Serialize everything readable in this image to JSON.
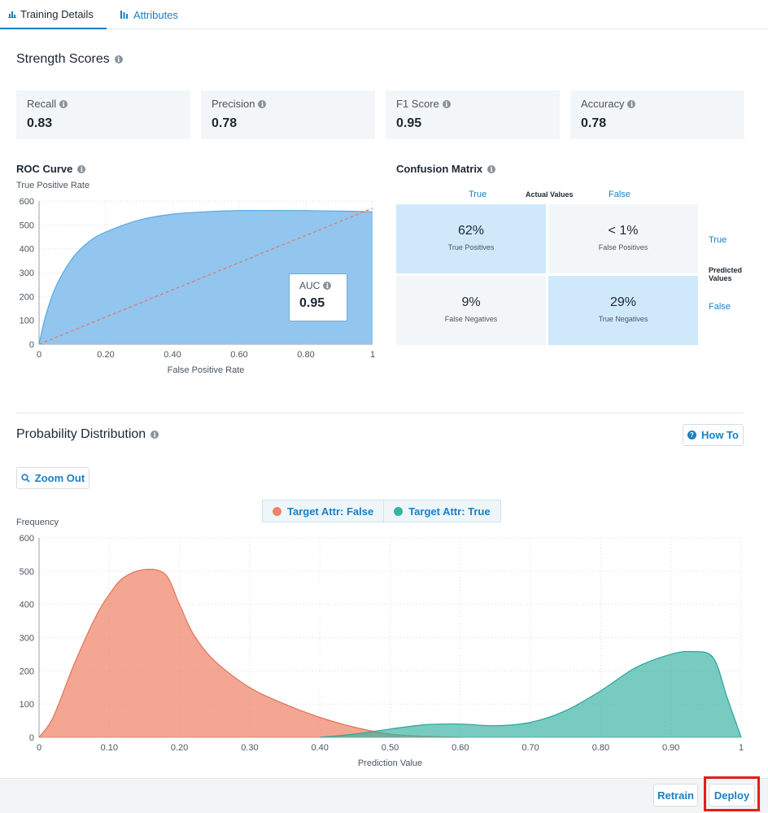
{
  "tabs": [
    {
      "label": "Training Details",
      "icon": "bar-chart-icon"
    },
    {
      "label": "Attributes",
      "icon": "attributes-icon"
    }
  ],
  "strength": {
    "title": "Strength Scores",
    "cards": [
      {
        "label": "Recall",
        "value": "0.83"
      },
      {
        "label": "Precision",
        "value": "0.78"
      },
      {
        "label": "F1 Score",
        "value": "0.95"
      },
      {
        "label": "Accuracy",
        "value": "0.78"
      }
    ]
  },
  "roc": {
    "title": "ROC Curve",
    "auc_label": "AUC",
    "auc_value": "0.95"
  },
  "confusion": {
    "title": "Confusion Matrix",
    "actual_label": "Actual Values",
    "actual_true": "True",
    "actual_false": "False",
    "predicted_label_1": "Predicted",
    "predicted_label_2": "Values",
    "predicted_true": "True",
    "predicted_false": "False",
    "cells": [
      {
        "pct": "62%",
        "label": "True Positives"
      },
      {
        "pct": "< 1%",
        "label": "False Positives"
      },
      {
        "pct": "9%",
        "label": "False Negatives"
      },
      {
        "pct": "29%",
        "label": "True Negatives"
      }
    ]
  },
  "probability": {
    "title": "Probability Distribution",
    "how_to": "How To",
    "zoom_out": "Zoom Out",
    "legend_false": "Target Attr: False",
    "legend_true": "Target Attr: True"
  },
  "footer": {
    "retrain": "Retrain",
    "deploy": "Deploy"
  },
  "colors": {
    "accent": "#1a7fc4",
    "roc_fill": "#8cc3ee",
    "false_series": "#ee8468",
    "true_series": "#36b3a3",
    "highlight": "#e0201a"
  },
  "chart_data": [
    {
      "type": "area",
      "title": "ROC Curve",
      "xlabel": "False Positive Rate",
      "ylabel": "True Positive Rate",
      "xlim": [
        0,
        1
      ],
      "ylim": [
        0,
        600
      ],
      "x_ticks": [
        "0",
        "0.20",
        "0.40",
        "0.60",
        "0.80",
        "1"
      ],
      "y_ticks": [
        "0",
        "100",
        "200",
        "300",
        "400",
        "500",
        "600"
      ],
      "series": [
        {
          "name": "ROC",
          "x": [
            0,
            0.02,
            0.05,
            0.1,
            0.15,
            0.2,
            0.3,
            0.4,
            0.5,
            0.6,
            0.7,
            0.8,
            0.9,
            1.0
          ],
          "values": [
            0,
            120,
            240,
            360,
            430,
            470,
            520,
            545,
            555,
            560,
            560,
            560,
            558,
            555
          ]
        },
        {
          "name": "Baseline",
          "x": [
            0,
            1
          ],
          "values": [
            0,
            570
          ]
        }
      ]
    },
    {
      "type": "area",
      "title": "Probability Distribution",
      "xlabel": "Prediction Value",
      "ylabel": "Frequency",
      "xlim": [
        0,
        1
      ],
      "ylim": [
        0,
        600
      ],
      "x_ticks": [
        "0",
        "0.10",
        "0.20",
        "0.30",
        "0.40",
        "0.50",
        "0.60",
        "0.70",
        "0.80",
        "0.90",
        "1"
      ],
      "y_ticks": [
        "0",
        "100",
        "200",
        "300",
        "400",
        "500",
        "600"
      ],
      "series": [
        {
          "name": "Target Attr: False",
          "x": [
            0.0,
            0.02,
            0.05,
            0.08,
            0.1,
            0.12,
            0.15,
            0.18,
            0.2,
            0.22,
            0.25,
            0.3,
            0.35,
            0.4,
            0.45,
            0.5,
            0.55,
            0.6
          ],
          "values": [
            0,
            60,
            220,
            360,
            430,
            480,
            505,
            490,
            400,
            310,
            230,
            150,
            100,
            60,
            30,
            10,
            3,
            0
          ]
        },
        {
          "name": "Target Attr: True",
          "x": [
            0.4,
            0.45,
            0.5,
            0.55,
            0.6,
            0.65,
            0.7,
            0.75,
            0.8,
            0.85,
            0.9,
            0.93,
            0.96,
            0.98,
            1.0
          ],
          "values": [
            0,
            10,
            25,
            38,
            40,
            35,
            45,
            80,
            140,
            210,
            250,
            258,
            240,
            120,
            0
          ]
        }
      ]
    }
  ]
}
